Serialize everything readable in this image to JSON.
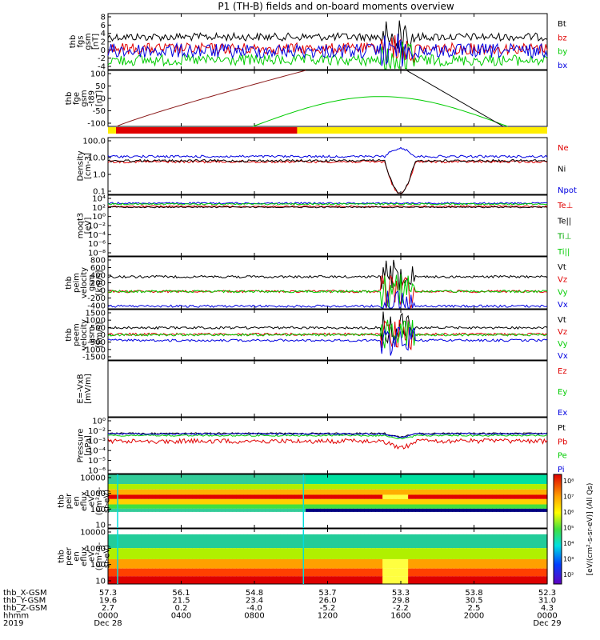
{
  "title": "P1 (TH-B) fields and on-board moments overview",
  "colors": {
    "black": "#000000",
    "red": "#e00000",
    "green": "#00cc00",
    "blue": "#0000e0",
    "darkred": "#8b1a1a",
    "yellow": "#ffee00",
    "cyan": "#00dddd"
  },
  "chart_data": [
    {
      "type": "line",
      "ylabel": [
        "thb",
        "fgs",
        "gsm",
        "[nT]"
      ],
      "yticks": [
        "8",
        "6",
        "4",
        "2",
        "0",
        "-2",
        "-4"
      ],
      "ylim": [
        -4,
        8
      ],
      "series": [
        {
          "name": "Bt",
          "color": "#000000",
          "base": 3,
          "amp": 0.7
        },
        {
          "name": "bz",
          "color": "#e00000",
          "base": 0.5,
          "amp": 1.0
        },
        {
          "name": "by",
          "color": "#00cc00",
          "base": -2,
          "amp": 1.0
        },
        {
          "name": "bx",
          "color": "#0000e0",
          "base": 0,
          "amp": 1.3
        }
      ]
    },
    {
      "type": "line",
      "ylabel": [
        "thb",
        "fge",
        "gsm",
        "-t89",
        "[nT]"
      ],
      "yticks": [
        "100",
        "50",
        "0",
        "-50",
        "-100"
      ],
      "ylim": [
        -125,
        100
      ]
    },
    {
      "type": "line",
      "ylabel": [
        "Density",
        "[cm-3]"
      ],
      "yticks": [
        "100.0",
        "10.0",
        "1.0",
        "0.1"
      ],
      "ylim": [
        0.03,
        300
      ],
      "scale": "log",
      "series": [
        {
          "name": "Ne",
          "color": "#e00000",
          "value": 6
        },
        {
          "name": "Ni",
          "color": "#000000",
          "value": 7
        },
        {
          "name": "Npot",
          "color": "#0000e0",
          "value": 14
        }
      ]
    },
    {
      "type": "line",
      "ylabel": [
        "moqt3",
        "[eV]"
      ],
      "yticks": [
        "10⁴",
        "10²",
        "10⁰",
        "10⁻²",
        "10⁻⁴",
        "10⁻⁶",
        "10⁻⁸"
      ],
      "ylim": [
        1e-09,
        10000.0
      ],
      "scale": "log",
      "series": [
        {
          "name": "Te⊥",
          "color": "#e00000"
        },
        {
          "name": "Te||",
          "color": "#000000"
        },
        {
          "name": "Ti⊥",
          "color": "#00aa00"
        },
        {
          "name": "Ti||",
          "color": "#00cc00"
        }
      ]
    },
    {
      "type": "line",
      "ylabel": [
        "thb",
        "peim",
        "velocity",
        "gsm",
        "[km/s]"
      ],
      "yticks": [
        "800",
        "600",
        "400",
        "200",
        "0",
        "-200",
        "-400"
      ],
      "ylim": [
        -400,
        800
      ],
      "series": [
        {
          "name": "Vt",
          "color": "#000000",
          "value": 340
        },
        {
          "name": "Vz",
          "color": "#e00000",
          "value": 0
        },
        {
          "name": "Vy",
          "color": "#00cc00",
          "value": 0
        },
        {
          "name": "Vx",
          "color": "#0000e0",
          "value": -340
        }
      ]
    },
    {
      "type": "line",
      "ylabel": [
        "thb",
        "peem",
        "velocity",
        "gsm",
        "[km/s]"
      ],
      "yticks": [
        "1500",
        "1000",
        "500",
        "0",
        "-500",
        "-1000",
        "-1500"
      ],
      "ylim": [
        -1500,
        1500
      ],
      "series": [
        {
          "name": "Vt",
          "color": "#000000",
          "value": 420
        },
        {
          "name": "Vz",
          "color": "#e00000",
          "value": 30
        },
        {
          "name": "Vy",
          "color": "#00cc00",
          "value": 0
        },
        {
          "name": "Vx",
          "color": "#0000e0",
          "value": -330
        }
      ]
    },
    {
      "type": "line",
      "ylabel": [
        "E=-VxB",
        "[mV/m]"
      ],
      "yticks": [],
      "series": [
        {
          "name": "Ez",
          "color": "#e00000"
        },
        {
          "name": "Ey",
          "color": "#00cc00"
        },
        {
          "name": "Ex",
          "color": "#0000e0"
        }
      ]
    },
    {
      "type": "line",
      "ylabel": [
        "Pressure",
        "[nPa]"
      ],
      "yticks": [
        "10⁰",
        "10⁻²",
        "10⁻³",
        "10⁻⁴",
        "10⁻⁵",
        "10⁻⁶"
      ],
      "ylim": [
        1e-06,
        1
      ],
      "scale": "log",
      "series": [
        {
          "name": "Pt",
          "color": "#000000",
          "value": 0.02
        },
        {
          "name": "Pb",
          "color": "#e00000",
          "value": 0.003
        },
        {
          "name": "Pe",
          "color": "#00cc00",
          "value": 0.012
        },
        {
          "name": "Pi",
          "color": "#0000e0",
          "value": 0.018
        }
      ]
    },
    {
      "type": "heatmap",
      "ylabel": [
        "thb",
        "peir",
        "en",
        "eflux",
        "eV",
        "(cm²-s-",
        "sr-eV)"
      ],
      "yticks": [
        "10000",
        "1000",
        "100",
        "10"
      ]
    },
    {
      "type": "heatmap",
      "ylabel": [
        "thb",
        "peer",
        "en",
        "eflux",
        "eV",
        "(cm²-s-",
        "sr-eV)"
      ],
      "yticks": [
        "10000",
        "1000",
        "100",
        "10"
      ]
    }
  ],
  "colorbar": {
    "label": "[eV/(cm²-s-sr-eV)] (All Qs)",
    "ticks": [
      "10⁸",
      "10⁷",
      "10⁶",
      "10⁵",
      "10⁴",
      "10³",
      "10²"
    ]
  },
  "orbit_bar": {
    "red_until_hhmm": "1020"
  },
  "xaxis": {
    "rows": [
      {
        "label": "thb_X-GSM",
        "values": [
          "57.3",
          "56.1",
          "54.8",
          "53.7",
          "53.3",
          "53.8",
          "52.3"
        ]
      },
      {
        "label": "thb_Y-GSM",
        "values": [
          "19.6",
          "21.5",
          "23.4",
          "26.0",
          "29.8",
          "30.5",
          "31.0"
        ]
      },
      {
        "label": "thb_Z-GSM",
        "values": [
          "2.7",
          "0.2",
          "-4.0",
          "-5.2",
          "-2.2",
          "2.5",
          "4.3"
        ]
      },
      {
        "label": "hhmm",
        "values": [
          "0000",
          "0400",
          "0800",
          "1200",
          "1600",
          "2000",
          "0000"
        ]
      },
      {
        "label": "2019",
        "values": [
          "Dec 28",
          "",
          "",
          "",
          "",
          "",
          "Dec 29"
        ]
      }
    ]
  }
}
